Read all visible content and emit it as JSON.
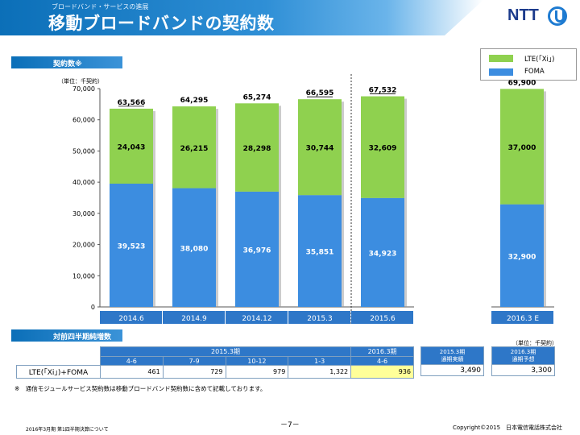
{
  "header": {
    "subtitle": "ブロードバンド・サービスの進展",
    "title": "移動ブロードバンドの契約数",
    "logo_text": "NTT"
  },
  "section_chart": {
    "label": "契約数※"
  },
  "section_table": {
    "label": "対前四半期純増数"
  },
  "unit_chart": "（単位：千契約）",
  "unit_table": "（単位：千契約）",
  "legend": [
    {
      "label": "LTE(「Xi」)",
      "color": "#8fd14f"
    },
    {
      "label": "FOMA",
      "color": "#3c8de0"
    }
  ],
  "chart_data": {
    "type": "bar",
    "stacked": true,
    "categories": [
      "2014.6",
      "2014.9",
      "2014.12",
      "2015.3",
      "2015.6",
      "2016.3 E"
    ],
    "series": [
      {
        "name": "FOMA",
        "values": [
          39523,
          38080,
          36976,
          35851,
          34923,
          32900
        ],
        "labels": [
          "39,523",
          "38,080",
          "36,976",
          "35,851",
          "34,923",
          "32,900"
        ]
      },
      {
        "name": "LTE(「Xi」)",
        "values": [
          24043,
          26215,
          28298,
          30744,
          32609,
          37000
        ],
        "labels": [
          "24,043",
          "26,215",
          "28,298",
          "30,744",
          "32,609",
          "37,000"
        ]
      }
    ],
    "totals": [
      "63,566",
      "64,295",
      "65,274",
      "66,595",
      "67,532",
      "69,900"
    ],
    "ylim": [
      0,
      70000
    ],
    "yticks": [
      "0",
      "10,000",
      "20,000",
      "30,000",
      "40,000",
      "50,000",
      "60,000",
      "70,000"
    ],
    "ytick_values": [
      0,
      10000,
      20000,
      30000,
      40000,
      50000,
      60000,
      70000
    ],
    "colors": {
      "foma": "#3c8de0",
      "lte": "#8fd14f"
    },
    "dashed_separator": "between 2015.3 and 2015.6"
  },
  "table": {
    "group_fy2015": "2015.3期",
    "group_fy2016": "2016.3期",
    "quarters": [
      "4-6",
      "7-9",
      "10-12",
      "1-3",
      "4-6"
    ],
    "row_label": "LTE(「Xi」)+FOMA",
    "values": [
      "461",
      "729",
      "979",
      "1,322",
      "936"
    ],
    "fy2015_actual_label_1": "2015.3期",
    "fy2015_actual_label_2": "通期実績",
    "fy2015_actual_value": "3,490",
    "fy2016_forecast_label_1": "2016.3期",
    "fy2016_forecast_label_2": "通期予想",
    "fy2016_forecast_value": "3,300"
  },
  "note": "※　通信モジュールサービス契約数は移動ブロードバンド契約数に含めて記載しております。",
  "footer": {
    "left": "2016年3月期 第1四半期決算について",
    "page": "－7－",
    "right": "Copyright©2015　日本電信電話株式会社"
  }
}
